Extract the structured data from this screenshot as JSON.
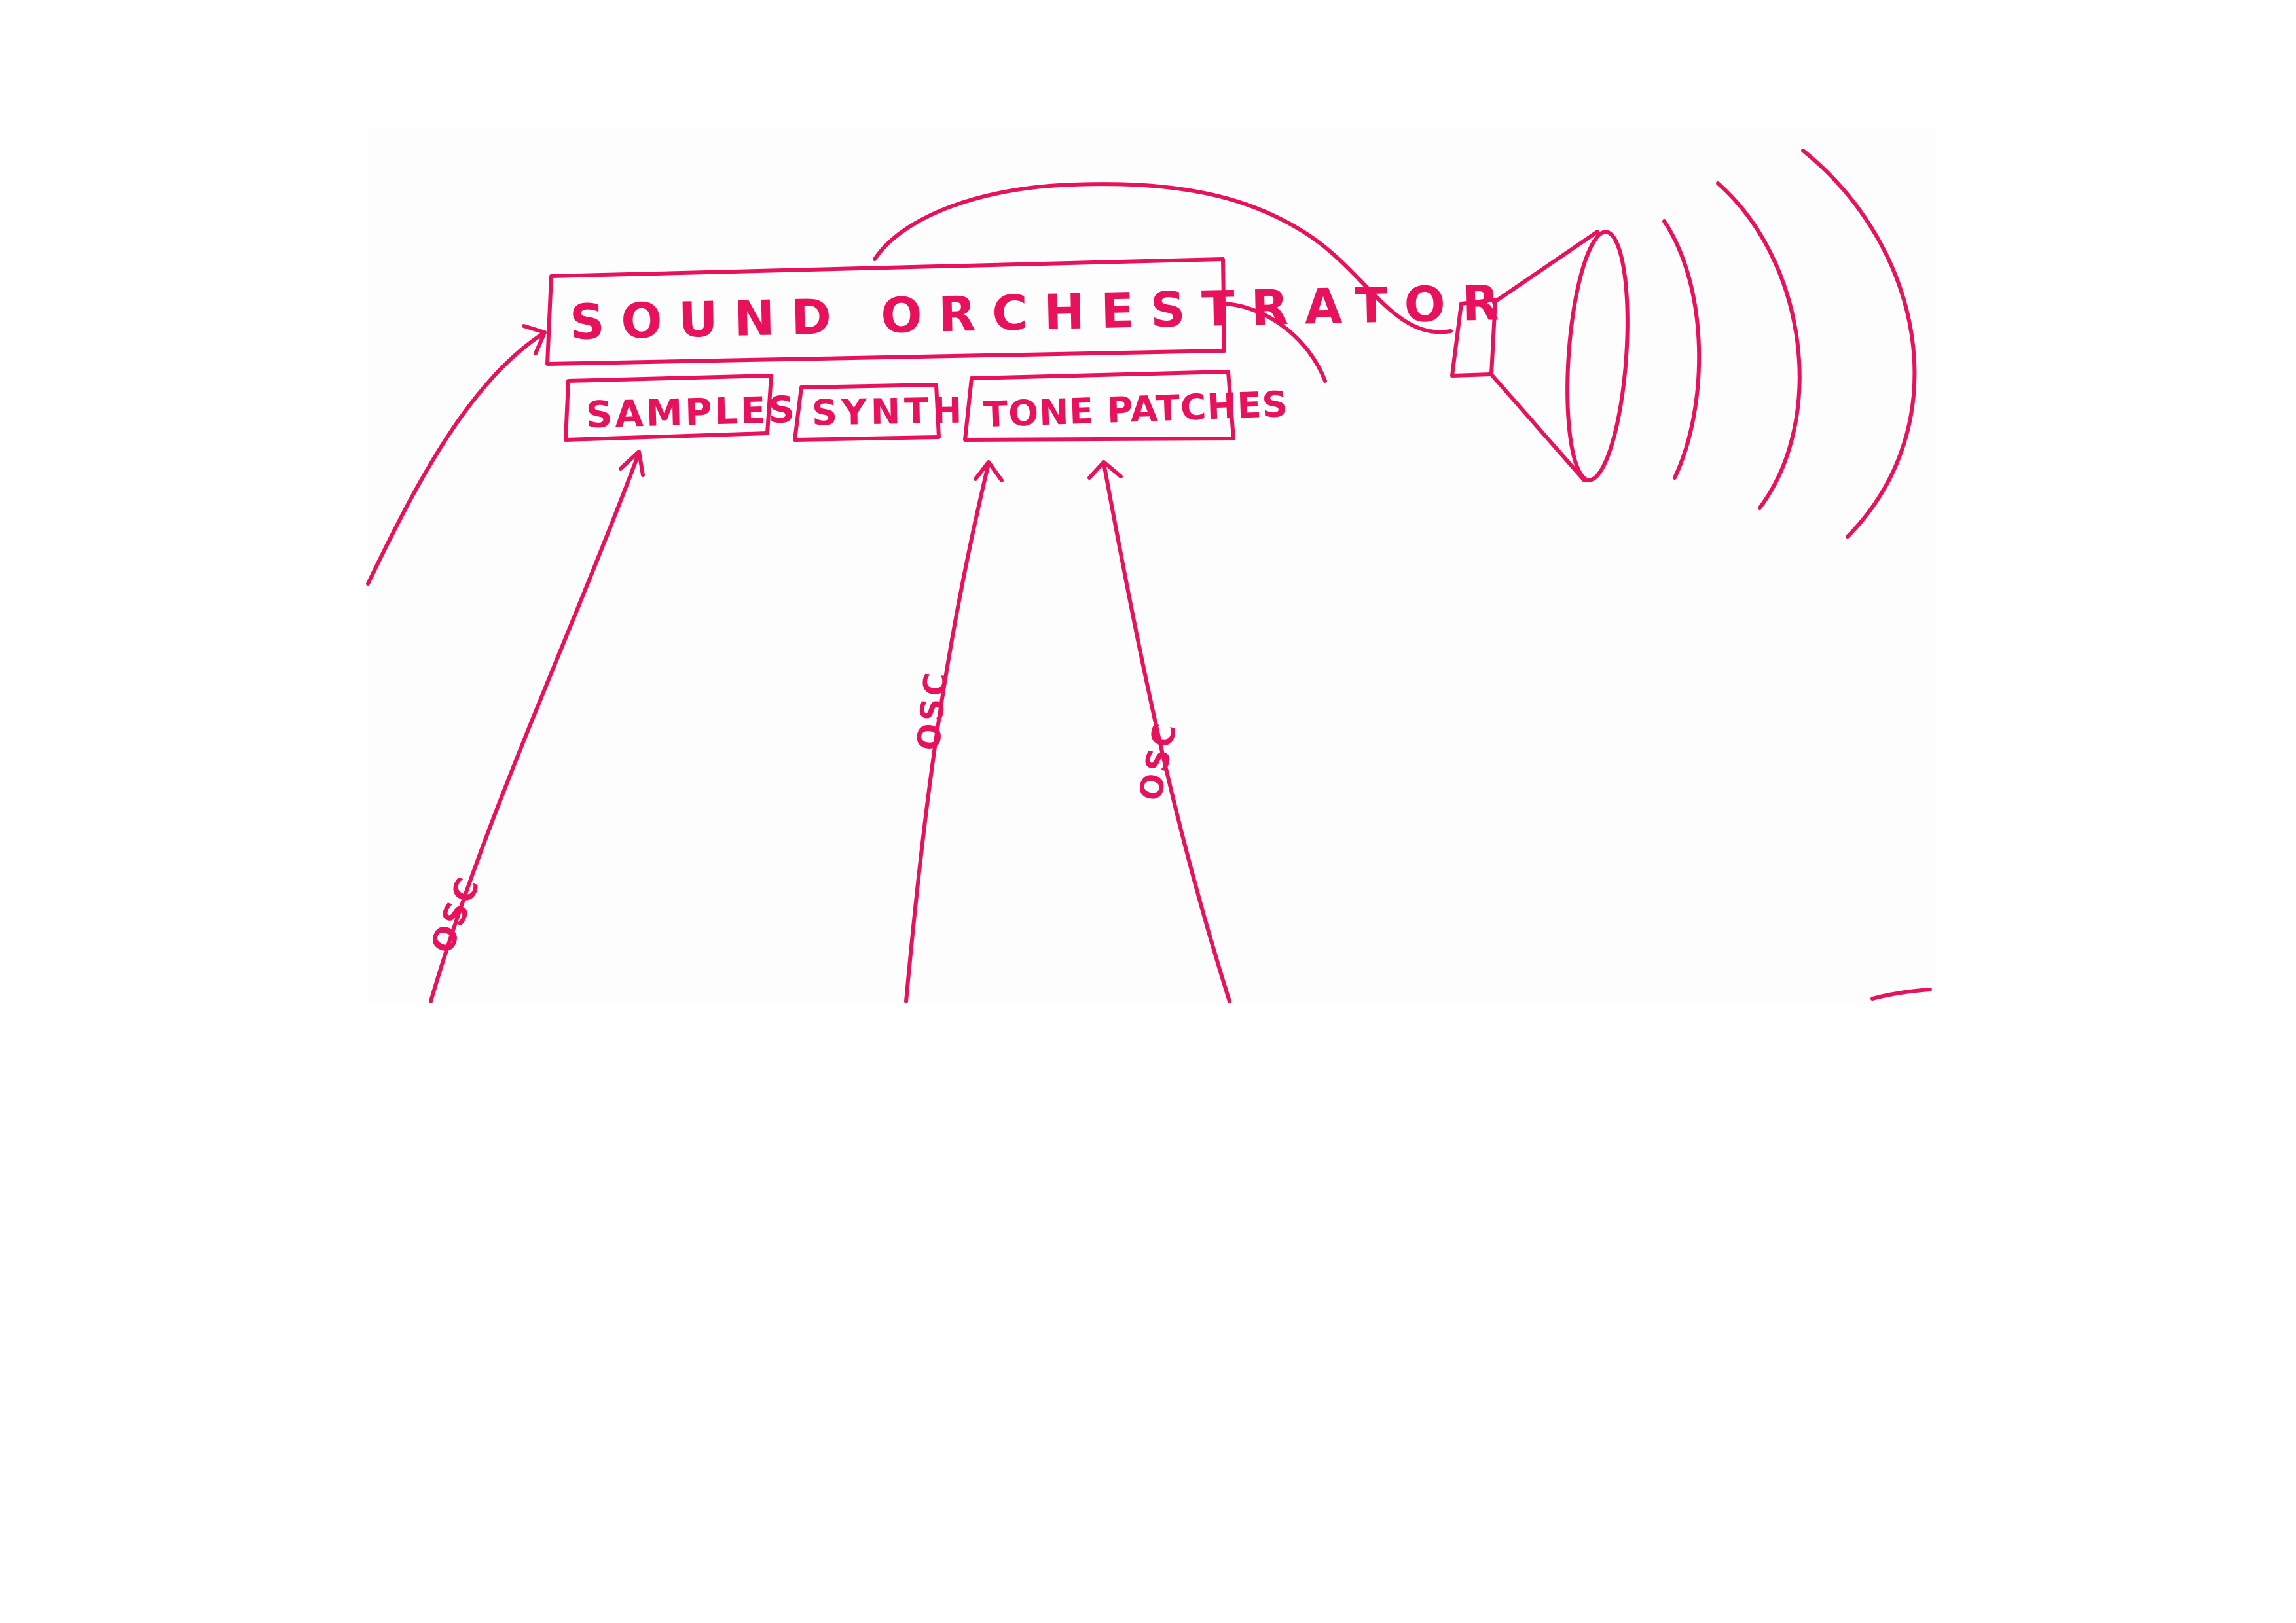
{
  "diagram": {
    "main_box": {
      "label": "SOUND ORCHESTRATOR"
    },
    "modules": [
      {
        "label": "SAMPLES"
      },
      {
        "label": "SYNTH"
      },
      {
        "label": "TONE PATCHES"
      }
    ],
    "connections": [
      {
        "label": "OSC"
      },
      {
        "label": "OSC"
      },
      {
        "label": "OSC"
      }
    ]
  },
  "colors": {
    "ink": "#e8125c",
    "background": "#ffffff"
  }
}
